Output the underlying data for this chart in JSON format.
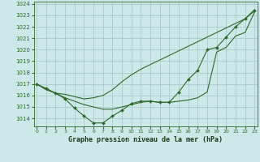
{
  "x": [
    0,
    1,
    2,
    3,
    4,
    5,
    6,
    7,
    8,
    9,
    10,
    11,
    12,
    13,
    14,
    15,
    16,
    17,
    18,
    19,
    20,
    21,
    22,
    23
  ],
  "line1": [
    1017.0,
    1016.6,
    1016.2,
    1016.1,
    1015.9,
    1015.7,
    1015.8,
    1016.0,
    1016.5,
    1017.2,
    1017.8,
    1018.3,
    1018.7,
    1019.1,
    1019.5,
    1019.9,
    1020.3,
    1020.7,
    1021.1,
    1021.5,
    1021.9,
    1022.3,
    1022.7,
    1023.5
  ],
  "line2": [
    1017.0,
    1016.6,
    1016.2,
    1015.7,
    1014.9,
    1014.2,
    1013.6,
    1013.6,
    1014.2,
    1014.7,
    1015.3,
    1015.5,
    1015.5,
    1015.4,
    1015.4,
    1016.3,
    1017.4,
    1018.2,
    1020.0,
    1020.2,
    1021.1,
    1022.0,
    1022.7,
    1023.4
  ],
  "line3": [
    1017.0,
    1016.5,
    1016.2,
    1015.8,
    1015.5,
    1015.2,
    1015.0,
    1014.8,
    1014.8,
    1015.0,
    1015.2,
    1015.4,
    1015.5,
    1015.4,
    1015.4,
    1015.5,
    1015.6,
    1015.8,
    1016.3,
    1019.8,
    1020.2,
    1021.2,
    1021.5,
    1023.3
  ],
  "bg_color": "#cce8e8",
  "grid_color": "#aacccc",
  "line_color": "#2d6a2d",
  "marker_color": "#2d6a2d",
  "xlabel": "Graphe pression niveau de la mer (hPa)",
  "ylim": [
    1013.3,
    1024.2
  ],
  "xlim": [
    -0.3,
    23.3
  ],
  "yticks": [
    1014,
    1015,
    1016,
    1017,
    1018,
    1019,
    1020,
    1021,
    1022,
    1023,
    1024
  ],
  "xticks": [
    0,
    1,
    2,
    3,
    4,
    5,
    6,
    7,
    8,
    9,
    10,
    11,
    12,
    13,
    14,
    15,
    16,
    17,
    18,
    19,
    20,
    21,
    22,
    23
  ]
}
